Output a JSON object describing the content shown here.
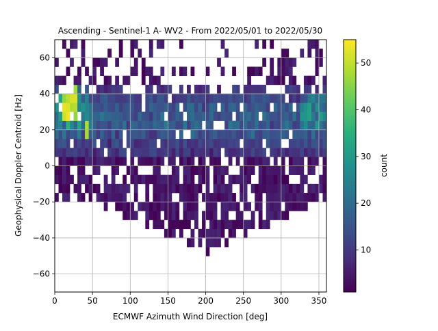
{
  "chart_data": {
    "type": "heatmap",
    "title": "Ascending - Sentinel-1 A- WV2 - From 2022/05/01 to 2022/05/30",
    "xlabel": "ECMWF Azimuth Wind Direction [deg]",
    "ylabel": "Geophysical Doppler Centroid [Hz]",
    "xlim": [
      0,
      360
    ],
    "ylim": [
      -70,
      70
    ],
    "x_ticks": [
      0,
      50,
      100,
      150,
      200,
      250,
      300,
      350
    ],
    "y_ticks": [
      -60,
      -40,
      -20,
      0,
      20,
      40,
      60
    ],
    "grid": true,
    "bin_width_deg": 5,
    "bin_height_hz": 5,
    "colormap": "viridis",
    "colorbar": {
      "label": "count",
      "min": 1,
      "max": 55,
      "ticks": [
        10,
        20,
        30,
        40,
        50
      ]
    }
  }
}
